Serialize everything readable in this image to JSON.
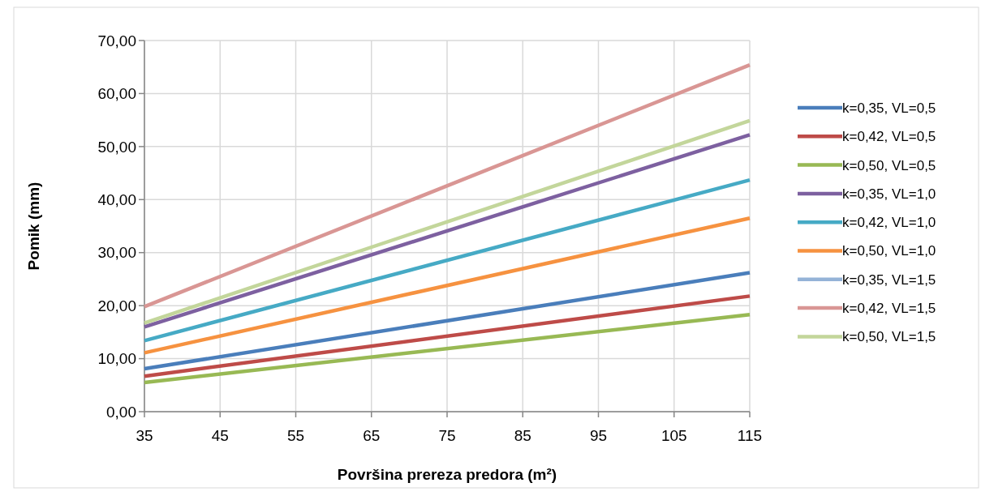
{
  "chart_data": {
    "type": "line",
    "xlabel": "Površina prereza predora (m²)",
    "ylabel": "Pomik (mm)",
    "x": [
      35,
      115
    ],
    "series": [
      {
        "name": "k=0,35, VL=0,5",
        "color": "#4a7ebb",
        "values": [
          8.1,
          26.2
        ]
      },
      {
        "name": "k=0,42, VL=0,5",
        "color": "#be4b48",
        "values": [
          6.7,
          21.8
        ]
      },
      {
        "name": "k=0,50, VL=0,5",
        "color": "#98b954",
        "values": [
          5.5,
          18.3
        ]
      },
      {
        "name": "k=0,35, VL=1,0",
        "color": "#7d60a0",
        "values": [
          16.0,
          52.2
        ]
      },
      {
        "name": "k=0,42, VL=1,0",
        "color": "#46aac5",
        "values": [
          13.4,
          43.7
        ]
      },
      {
        "name": "k=0,50, VL=1,0",
        "color": "#f69240",
        "values": [
          11.1,
          36.5
        ]
      },
      {
        "name": "k=0,35, VL=1,5",
        "color": "#95b3d7",
        "values": [
          null,
          null
        ]
      },
      {
        "name": "k=0,42, VL=1,5",
        "color": "#d99694",
        "values": [
          19.8,
          65.4
        ]
      },
      {
        "name": "k=0,50, VL=1,5",
        "color": "#c3d69b",
        "values": [
          16.7,
          54.9
        ]
      }
    ],
    "xlim": [
      35,
      115
    ],
    "xticks": [
      35,
      45,
      55,
      65,
      75,
      85,
      95,
      105,
      115
    ],
    "ylim": [
      0,
      70
    ],
    "yticks": [
      {
        "value": 0,
        "label": "0,00"
      },
      {
        "value": 10,
        "label": "10,00"
      },
      {
        "value": 20,
        "label": "20,00"
      },
      {
        "value": 30,
        "label": "30,00"
      },
      {
        "value": 40,
        "label": "40,00"
      },
      {
        "value": 50,
        "label": "50,00"
      },
      {
        "value": 60,
        "label": "60,00"
      },
      {
        "value": 70,
        "label": "70,00"
      }
    ],
    "grid": true,
    "legend": "right",
    "marker": "none",
    "line_style": "solid"
  }
}
